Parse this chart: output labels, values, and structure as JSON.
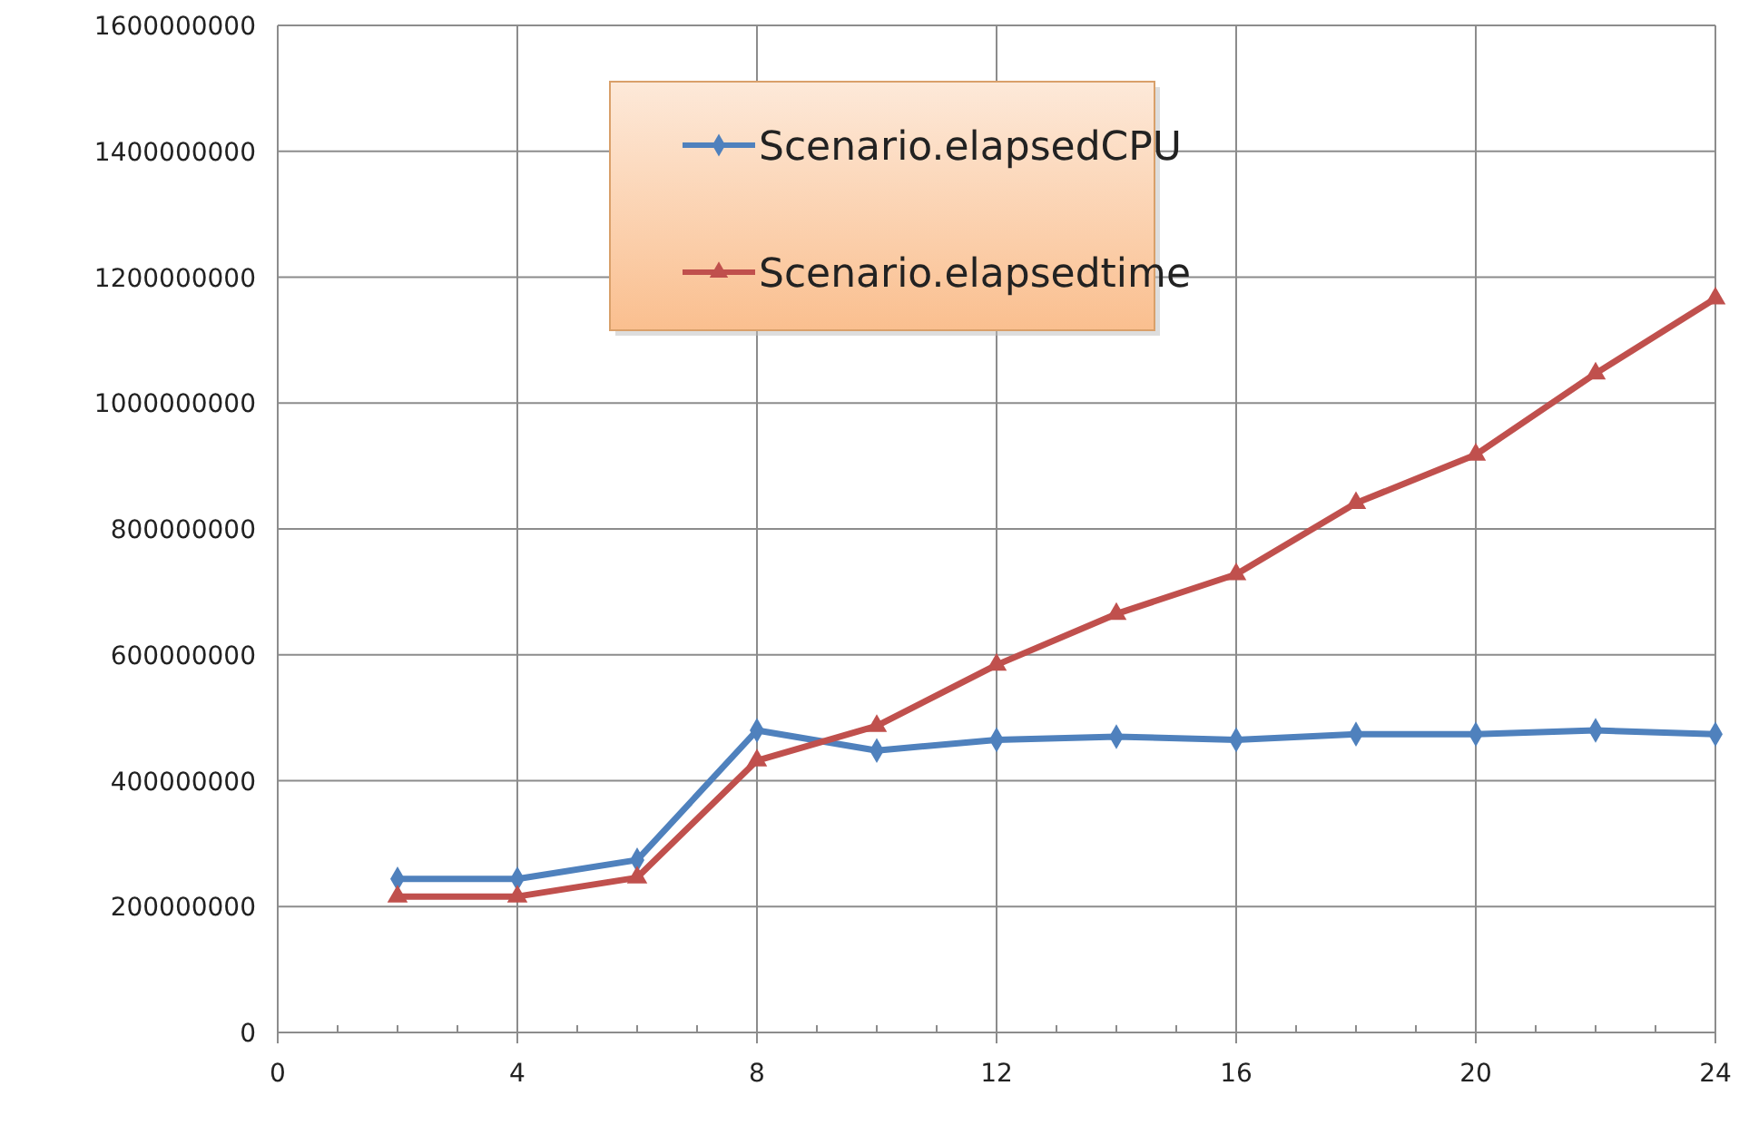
{
  "chart_data": {
    "type": "line",
    "x": [
      2,
      4,
      6,
      8,
      10,
      12,
      14,
      16,
      18,
      20,
      22,
      24
    ],
    "series": [
      {
        "name": "Scenario.elapsedCPU",
        "color": "#4f81bd",
        "marker": "diamond",
        "values": [
          244000000,
          244000000,
          274000000,
          480000000,
          448000000,
          465000000,
          470000000,
          465000000,
          474000000,
          474000000,
          480000000,
          474000000
        ]
      },
      {
        "name": "Scenario.elapsedtime",
        "color": "#c0504d",
        "marker": "triangle",
        "values": [
          216000000,
          216000000,
          246000000,
          432000000,
          487000000,
          584000000,
          665000000,
          728000000,
          841000000,
          918000000,
          1047000000,
          1166000000
        ]
      }
    ],
    "xlim": [
      0,
      24
    ],
    "xticks": [
      0,
      4,
      8,
      12,
      16,
      20,
      24
    ],
    "ylim": [
      0,
      1600000000
    ],
    "yticks": [
      0,
      200000000,
      400000000,
      600000000,
      800000000,
      1000000000,
      1200000000,
      1400000000,
      1600000000
    ],
    "grid": true,
    "legend": "top",
    "line_style": "solid"
  }
}
